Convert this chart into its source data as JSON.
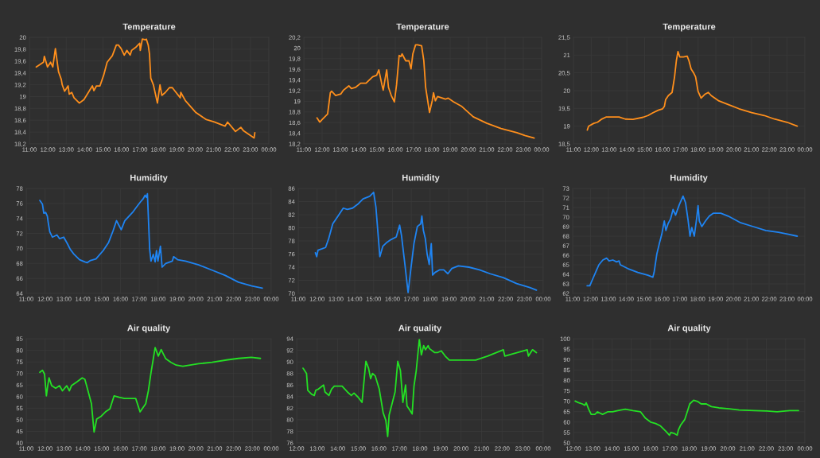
{
  "chart_data": [
    {
      "type": "line",
      "title": "Temperature",
      "line_style": "solid",
      "grid": true,
      "x": [
        11.37,
        11.76,
        11.81,
        11.98,
        12.15,
        12.27,
        12.41,
        12.58,
        12.73,
        12.78,
        12.91,
        13.1,
        13.16,
        13.3,
        13.42,
        13.71,
        13.96,
        14.42,
        14.5,
        14.64,
        14.83,
        15.03,
        15.22,
        15.5,
        15.72,
        15.83,
        15.98,
        16.15,
        16.29,
        16.47,
        16.55,
        16.8,
        16.99,
        17.02,
        17.13,
        17.27,
        17.35,
        17.45,
        17.52,
        17.59,
        17.73,
        17.95,
        18.09,
        18.19,
        18.38,
        18.6,
        18.76,
        18.91,
        19.19,
        19.22,
        19.47,
        20.04,
        20.61,
        21.04,
        21.62,
        21.76,
        22.19,
        22.48,
        22.63,
        23.2,
        23.24
      ],
      "series": [
        {
          "color": "#ff8f1c",
          "values": [
            19.5,
            19.58,
            19.68,
            19.5,
            19.58,
            19.5,
            19.81,
            19.42,
            19.29,
            19.2,
            19.09,
            19.18,
            19.04,
            19.07,
            18.98,
            18.89,
            18.95,
            19.18,
            19.1,
            19.18,
            19.18,
            19.36,
            19.58,
            19.69,
            19.87,
            19.87,
            19.81,
            19.7,
            19.78,
            19.7,
            19.78,
            19.84,
            19.9,
            19.78,
            19.97,
            19.96,
            19.97,
            19.87,
            19.72,
            19.31,
            19.2,
            18.89,
            19.2,
            19.02,
            19.07,
            19.15,
            19.15,
            19.09,
            18.98,
            19.07,
            18.93,
            18.73,
            18.61,
            18.57,
            18.5,
            18.57,
            18.41,
            18.48,
            18.42,
            18.3,
            18.39
          ]
        }
      ],
      "xlim": [
        11,
        24
      ],
      "xticks": [
        {
          "value": 11,
          "label": "11:00"
        },
        {
          "value": 12,
          "label": "12:00"
        },
        {
          "value": 13,
          "label": "13:00"
        },
        {
          "value": 14,
          "label": "14:00"
        },
        {
          "value": 15,
          "label": "15:00"
        },
        {
          "value": 16,
          "label": "16:00"
        },
        {
          "value": 17,
          "label": "17:00"
        },
        {
          "value": 18,
          "label": "18:00"
        },
        {
          "value": 19,
          "label": "19:00"
        },
        {
          "value": 20,
          "label": "20:00"
        },
        {
          "value": 21,
          "label": "21:00"
        },
        {
          "value": 22,
          "label": "22:00"
        },
        {
          "value": 23,
          "label": "23:00"
        },
        {
          "value": 24,
          "label": "00:00"
        }
      ],
      "ylim": [
        18.2,
        20
      ],
      "yticks": [
        {
          "value": 18.2,
          "label": "18,2"
        },
        {
          "value": 18.4,
          "label": "18,4"
        },
        {
          "value": 18.6,
          "label": "18,6"
        },
        {
          "value": 18.8,
          "label": "18,8"
        },
        19,
        {
          "value": 19.2,
          "label": "19,2"
        },
        {
          "value": 19.4,
          "label": "19,4"
        },
        {
          "value": 19.6,
          "label": "19,6"
        },
        {
          "value": 19.8,
          "label": "19,8"
        },
        20
      ]
    },
    {
      "type": "line",
      "title": "Temperature",
      "line_style": "solid",
      "grid": true,
      "x": [
        11.72,
        11.87,
        12.01,
        12.3,
        12.45,
        12.52,
        12.74,
        13.03,
        13.17,
        13.46,
        13.6,
        13.82,
        14.11,
        14.4,
        14.76,
        14.98,
        15.1,
        15.27,
        15.34,
        15.44,
        15.53,
        15.63,
        15.78,
        15.95,
        16.07,
        16.21,
        16.31,
        16.37,
        16.57,
        16.75,
        16.86,
        16.96,
        17.11,
        17.22,
        17.44,
        17.56,
        17.66,
        17.87,
        18.02,
        18.09,
        18.19,
        18.31,
        18.74,
        18.89,
        19.18,
        19.61,
        20.26,
        20.99,
        21.78,
        22.65,
        23.08,
        23.59
      ],
      "series": [
        {
          "color": "#ff8f1c",
          "values": [
            18.69,
            18.61,
            18.66,
            18.76,
            19.16,
            19.19,
            19.11,
            19.14,
            19.21,
            19.29,
            19.24,
            19.26,
            19.34,
            19.34,
            19.46,
            19.49,
            19.59,
            19.31,
            19.21,
            19.41,
            19.59,
            19.26,
            19.11,
            18.99,
            19.31,
            19.86,
            19.84,
            19.89,
            19.76,
            19.76,
            19.61,
            19.89,
            20.06,
            20.06,
            20.04,
            19.76,
            19.26,
            18.79,
            19.01,
            19.16,
            19.01,
            19.09,
            19.04,
            19.06,
            18.99,
            18.91,
            18.71,
            18.59,
            18.49,
            18.41,
            18.36,
            18.31
          ]
        }
      ],
      "xlim": [
        11,
        24
      ],
      "xticks": [
        {
          "value": 11,
          "label": "11:00"
        },
        {
          "value": 12,
          "label": "12:00"
        },
        {
          "value": 13,
          "label": "13:00"
        },
        {
          "value": 14,
          "label": "14:00"
        },
        {
          "value": 15,
          "label": "15:00"
        },
        {
          "value": 16,
          "label": "16:00"
        },
        {
          "value": 17,
          "label": "17:00"
        },
        {
          "value": 18,
          "label": "18:00"
        },
        {
          "value": 19,
          "label": "19:00"
        },
        {
          "value": 20,
          "label": "20:00"
        },
        {
          "value": 21,
          "label": "21:00"
        },
        {
          "value": 22,
          "label": "22:00"
        },
        {
          "value": 23,
          "label": "23:00"
        },
        {
          "value": 24,
          "label": "00:00"
        }
      ],
      "ylim": [
        18.2,
        20.2
      ],
      "yticks": [
        {
          "value": 18.2,
          "label": "18,2"
        },
        {
          "value": 18.4,
          "label": "18,4"
        },
        {
          "value": 18.6,
          "label": "18,6"
        },
        {
          "value": 18.8,
          "label": "18,8"
        },
        19,
        {
          "value": 19.2,
          "label": "19,2"
        },
        {
          "value": 19.4,
          "label": "19,4"
        },
        {
          "value": 19.6,
          "label": "19,6"
        },
        {
          "value": 19.8,
          "label": "19,8"
        },
        20,
        {
          "value": 20.2,
          "label": "20,2"
        }
      ]
    },
    {
      "type": "line",
      "title": "Temperature",
      "line_style": "solid",
      "grid": true,
      "x": [
        11.78,
        11.85,
        12.14,
        12.35,
        12.56,
        12.85,
        13.2,
        13.56,
        13.91,
        14.34,
        14.91,
        15.19,
        15.47,
        15.76,
        16.01,
        16.11,
        16.18,
        16.33,
        16.54,
        16.68,
        16.78,
        16.87,
        16.97,
        17.18,
        17.39,
        17.49,
        17.61,
        17.75,
        17.86,
        18.0,
        18.17,
        18.39,
        18.57,
        18.74,
        19.17,
        19.74,
        20.3,
        21.01,
        21.72,
        22.29,
        23.0,
        23.57
      ],
      "series": [
        {
          "color": "#ff8f1c",
          "values": [
            18.89,
            19.0,
            19.08,
            19.11,
            19.19,
            19.26,
            19.26,
            19.26,
            19.2,
            19.19,
            19.25,
            19.3,
            19.38,
            19.45,
            19.49,
            19.56,
            19.75,
            19.86,
            19.95,
            20.39,
            20.84,
            21.1,
            20.95,
            20.95,
            20.97,
            20.84,
            20.61,
            20.5,
            20.39,
            19.98,
            19.79,
            19.9,
            19.95,
            19.86,
            19.71,
            19.6,
            19.49,
            19.38,
            19.3,
            19.2,
            19.11,
            19.0
          ]
        }
      ],
      "xlim": [
        11,
        24
      ],
      "xticks": [
        {
          "value": 11,
          "label": "11:00"
        },
        {
          "value": 12,
          "label": "12:00"
        },
        {
          "value": 13,
          "label": "13:00"
        },
        {
          "value": 14,
          "label": "14:00"
        },
        {
          "value": 15,
          "label": "15:00"
        },
        {
          "value": 16,
          "label": "16:00"
        },
        {
          "value": 17,
          "label": "17:00"
        },
        {
          "value": 18,
          "label": "18:00"
        },
        {
          "value": 19,
          "label": "19:00"
        },
        {
          "value": 20,
          "label": "20:00"
        },
        {
          "value": 21,
          "label": "21:00"
        },
        {
          "value": 22,
          "label": "22:00"
        },
        {
          "value": 23,
          "label": "23:00"
        },
        {
          "value": 24,
          "label": "00:00"
        }
      ],
      "ylim": [
        18.5,
        21.5
      ],
      "yticks": [
        {
          "value": 18.5,
          "label": "18,5"
        },
        19,
        {
          "value": 19.5,
          "label": "19,5"
        },
        20,
        {
          "value": 20.5,
          "label": "20,5"
        },
        21,
        {
          "value": 21.5,
          "label": "21,5"
        }
      ]
    },
    {
      "type": "line",
      "title": "Humidity",
      "line_style": "solid",
      "grid": true,
      "x": [
        11.72,
        11.86,
        11.93,
        12.03,
        12.12,
        12.17,
        12.25,
        12.39,
        12.63,
        12.77,
        12.99,
        13.19,
        13.33,
        13.54,
        13.83,
        14.11,
        14.24,
        14.41,
        14.7,
        15.08,
        15.37,
        15.6,
        15.79,
        16.04,
        16.23,
        16.64,
        16.85,
        17.06,
        17.2,
        17.31,
        17.38,
        17.43,
        17.55,
        17.62,
        17.74,
        17.84,
        17.91,
        17.99,
        18.12,
        18.21,
        18.4,
        18.75,
        18.82,
        19.03,
        19.45,
        20.15,
        20.86,
        21.56,
        22.26,
        22.97,
        23.53
      ],
      "series": [
        {
          "color": "#1f84f2",
          "values": [
            76.4,
            75.9,
            74.7,
            74.8,
            74.3,
            73.4,
            72.2,
            71.5,
            71.8,
            71.3,
            71.5,
            70.6,
            69.9,
            69.2,
            68.5,
            68.2,
            68.1,
            68.4,
            68.6,
            69.7,
            70.8,
            72.3,
            73.7,
            72.5,
            73.7,
            74.8,
            75.5,
            76.2,
            76.6,
            77.1,
            76.8,
            77.3,
            69.9,
            68.3,
            69.2,
            68.2,
            69.7,
            68.3,
            70.3,
            67.5,
            68.0,
            68.3,
            68.9,
            68.5,
            68.3,
            67.8,
            67.1,
            66.4,
            65.5,
            65.0,
            64.7
          ]
        }
      ],
      "xlim": [
        11,
        24
      ],
      "xticks": [
        {
          "value": 11,
          "label": "11:00"
        },
        {
          "value": 12,
          "label": "12:00"
        },
        {
          "value": 13,
          "label": "13:00"
        },
        {
          "value": 14,
          "label": "14:00"
        },
        {
          "value": 15,
          "label": "15:00"
        },
        {
          "value": 16,
          "label": "16:00"
        },
        {
          "value": 17,
          "label": "17:00"
        },
        {
          "value": 18,
          "label": "18:00"
        },
        {
          "value": 19,
          "label": "19:00"
        },
        {
          "value": 20,
          "label": "20:00"
        },
        {
          "value": 21,
          "label": "21:00"
        },
        {
          "value": 22,
          "label": "22:00"
        },
        {
          "value": 23,
          "label": "23:00"
        },
        {
          "value": 24,
          "label": "00:00"
        }
      ],
      "ylim": [
        64,
        78
      ],
      "yticks": [
        64,
        66,
        68,
        70,
        72,
        74,
        76,
        78
      ]
    },
    {
      "type": "line",
      "title": "Humidity",
      "line_style": "solid",
      "grid": true,
      "x": [
        11.91,
        11.98,
        12.05,
        12.26,
        12.45,
        12.62,
        12.83,
        13.11,
        13.39,
        13.6,
        13.88,
        14.16,
        14.44,
        14.79,
        15.0,
        15.12,
        15.33,
        15.49,
        15.71,
        15.92,
        16.2,
        16.38,
        16.48,
        16.66,
        16.83,
        16.97,
        17.14,
        17.32,
        17.5,
        17.56,
        17.64,
        17.74,
        17.84,
        17.95,
        18.06,
        18.13,
        18.26,
        18.51,
        18.72,
        18.94,
        19.15,
        19.5,
        20.06,
        20.62,
        21.18,
        21.88,
        22.59,
        23.29,
        23.64
      ],
      "series": [
        {
          "color": "#1f84f2",
          "values": [
            76.2,
            75.6,
            76.6,
            76.8,
            77.0,
            78.4,
            80.6,
            81.8,
            83.0,
            82.8,
            83.0,
            83.6,
            84.4,
            84.8,
            85.4,
            83.2,
            75.6,
            77.2,
            77.8,
            78.2,
            78.6,
            80.4,
            78.8,
            74.4,
            70.1,
            73.6,
            77.6,
            80.2,
            80.6,
            81.8,
            79.6,
            78.4,
            76.0,
            74.4,
            77.6,
            72.8,
            73.2,
            73.6,
            73.6,
            73.0,
            73.8,
            74.2,
            74.0,
            73.6,
            73.0,
            72.4,
            71.5,
            70.9,
            70.5
          ]
        }
      ],
      "xlim": [
        11,
        24
      ],
      "xticks": [
        {
          "value": 11,
          "label": "11:00"
        },
        {
          "value": 12,
          "label": "12:00"
        },
        {
          "value": 13,
          "label": "13:00"
        },
        {
          "value": 14,
          "label": "14:00"
        },
        {
          "value": 15,
          "label": "15:00"
        },
        {
          "value": 16,
          "label": "16:00"
        },
        {
          "value": 17,
          "label": "17:00"
        },
        {
          "value": 18,
          "label": "18:00"
        },
        {
          "value": 19,
          "label": "19:00"
        },
        {
          "value": 20,
          "label": "20:00"
        },
        {
          "value": 21,
          "label": "21:00"
        },
        {
          "value": 22,
          "label": "22:00"
        },
        {
          "value": 23,
          "label": "23:00"
        },
        {
          "value": 24,
          "label": "00:00"
        }
      ],
      "ylim": [
        70,
        86
      ],
      "yticks": [
        70,
        72,
        74,
        76,
        78,
        80,
        82,
        84,
        86
      ]
    },
    {
      "type": "line",
      "title": "Humidity",
      "line_style": "solid",
      "grid": true,
      "x": [
        11.81,
        11.96,
        12.12,
        12.33,
        12.47,
        12.69,
        12.9,
        13.04,
        13.25,
        13.46,
        13.6,
        13.67,
        14.09,
        14.65,
        15.21,
        15.49,
        15.56,
        15.71,
        15.85,
        15.99,
        16.13,
        16.22,
        16.34,
        16.48,
        16.62,
        16.76,
        16.97,
        17.18,
        17.32,
        17.46,
        17.57,
        17.67,
        17.81,
        17.95,
        18.02,
        18.09,
        18.23,
        18.44,
        18.65,
        18.87,
        19.29,
        19.71,
        20.41,
        21.11,
        21.81,
        22.52,
        23.08,
        23.57
      ],
      "series": [
        {
          "color": "#1f84f2",
          "values": [
            62.8,
            62.8,
            63.5,
            64.4,
            65.0,
            65.5,
            65.7,
            65.4,
            65.5,
            65.3,
            65.4,
            65.0,
            64.6,
            64.2,
            63.9,
            63.7,
            64.2,
            66.1,
            67.2,
            68.2,
            69.6,
            68.6,
            69.3,
            69.8,
            70.8,
            70.2,
            71.3,
            72.2,
            71.5,
            69.7,
            68.0,
            68.9,
            68.0,
            70.0,
            71.2,
            69.6,
            69.0,
            69.6,
            70.1,
            70.4,
            70.4,
            70.1,
            69.4,
            69.0,
            68.6,
            68.4,
            68.2,
            68.0
          ]
        }
      ],
      "xlim": [
        11,
        24
      ],
      "xticks": [
        {
          "value": 11,
          "label": "11:00"
        },
        {
          "value": 12,
          "label": "12:00"
        },
        {
          "value": 13,
          "label": "13:00"
        },
        {
          "value": 14,
          "label": "14:00"
        },
        {
          "value": 15,
          "label": "15:00"
        },
        {
          "value": 16,
          "label": "16:00"
        },
        {
          "value": 17,
          "label": "17:00"
        },
        {
          "value": 18,
          "label": "18:00"
        },
        {
          "value": 19,
          "label": "19:00"
        },
        {
          "value": 20,
          "label": "20:00"
        },
        {
          "value": 21,
          "label": "21:00"
        },
        {
          "value": 22,
          "label": "22:00"
        },
        {
          "value": 23,
          "label": "23:00"
        },
        {
          "value": 24,
          "label": "00:00"
        }
      ],
      "ylim": [
        62,
        73
      ],
      "yticks": [
        62,
        63,
        64,
        65,
        66,
        67,
        68,
        69,
        70,
        71,
        72,
        73
      ]
    },
    {
      "type": "line",
      "title": "Air quality",
      "line_style": "solid",
      "grid": true,
      "x": [
        11.72,
        11.86,
        11.97,
        12.07,
        12.14,
        12.21,
        12.35,
        12.56,
        12.77,
        12.92,
        13.15,
        13.29,
        13.4,
        13.69,
        13.97,
        14.11,
        14.24,
        14.46,
        14.6,
        14.74,
        14.96,
        15.23,
        15.44,
        15.66,
        15.93,
        16.21,
        16.5,
        16.81,
        17.04,
        17.2,
        17.34,
        17.48,
        17.62,
        17.84,
        18.01,
        18.16,
        18.4,
        18.68,
        18.96,
        19.31,
        20.15,
        20.86,
        21.69,
        22.26,
        22.94,
        23.43
      ],
      "series": [
        {
          "color": "#24e024",
          "values": [
            70.5,
            71.4,
            69.7,
            60.3,
            64.7,
            68.1,
            64.7,
            63.6,
            64.7,
            62.5,
            64.7,
            62.5,
            64.7,
            66.4,
            68.1,
            67.5,
            63.6,
            56.9,
            44.7,
            50.3,
            51.4,
            53.6,
            54.7,
            60.3,
            59.7,
            59.2,
            59.2,
            59.2,
            53.4,
            55.3,
            56.9,
            62.5,
            70.3,
            81.2,
            77.5,
            80.3,
            76.4,
            74.8,
            73.6,
            73.1,
            74.2,
            74.8,
            75.9,
            76.5,
            77.0,
            76.5
          ]
        }
      ],
      "xlim": [
        11,
        24
      ],
      "xticks": [
        {
          "value": 11,
          "label": "11:00"
        },
        {
          "value": 12,
          "label": "12:00"
        },
        {
          "value": 13,
          "label": "13:00"
        },
        {
          "value": 14,
          "label": "14:00"
        },
        {
          "value": 15,
          "label": "15:00"
        },
        {
          "value": 16,
          "label": "16:00"
        },
        {
          "value": 17,
          "label": "17:00"
        },
        {
          "value": 18,
          "label": "18:00"
        },
        {
          "value": 19,
          "label": "19:00"
        },
        {
          "value": 20,
          "label": "20:00"
        },
        {
          "value": 21,
          "label": "21:00"
        },
        {
          "value": 22,
          "label": "22:00"
        },
        {
          "value": 23,
          "label": "23:00"
        },
        {
          "value": 24,
          "label": "00:00"
        }
      ],
      "ylim": [
        40,
        85
      ],
      "yticks": [
        40,
        45,
        50,
        55,
        60,
        65,
        70,
        75,
        80,
        85
      ]
    },
    {
      "type": "line",
      "title": "Air quality",
      "line_style": "solid",
      "grid": true,
      "x": [
        12.31,
        12.48,
        12.54,
        12.73,
        12.86,
        12.93,
        13.06,
        13.31,
        13.38,
        13.57,
        13.7,
        13.83,
        14.21,
        14.47,
        14.66,
        14.79,
        14.99,
        15.18,
        15.37,
        15.5,
        15.6,
        15.69,
        15.82,
        16.02,
        16.21,
        16.34,
        16.43,
        16.5,
        16.66,
        16.79,
        16.92,
        17.05,
        17.17,
        17.3,
        17.37,
        17.5,
        17.62,
        17.71,
        17.82,
        17.97,
        18.07,
        18.18,
        18.27,
        18.4,
        18.46,
        18.72,
        18.85,
        19.04,
        19.23,
        19.43,
        20.13,
        20.71,
        21.29,
        22.06,
        22.13,
        23.22,
        23.28,
        23.48,
        23.67
      ],
      "series": [
        {
          "color": "#24e024",
          "values": [
            88.9,
            88.0,
            85.1,
            84.4,
            84.2,
            85.1,
            85.3,
            86.0,
            84.8,
            84.2,
            85.3,
            85.8,
            85.8,
            84.8,
            84.2,
            84.6,
            83.9,
            83.0,
            90.1,
            88.9,
            87.1,
            88.0,
            87.6,
            85.3,
            81.2,
            79.9,
            77.1,
            80.8,
            83.0,
            84.8,
            90.1,
            88.5,
            83.0,
            86.0,
            82.4,
            81.7,
            81.0,
            85.8,
            88.5,
            93.9,
            91.2,
            92.8,
            92.1,
            92.8,
            92.3,
            91.6,
            91.6,
            91.9,
            91.0,
            90.3,
            90.3,
            90.3,
            91.0,
            92.1,
            91.0,
            92.1,
            91.0,
            92.1,
            91.6
          ]
        }
      ],
      "xlim": [
        12,
        24
      ],
      "xticks": [
        {
          "value": 12,
          "label": "12:00"
        },
        {
          "value": 13,
          "label": "13:00"
        },
        {
          "value": 14,
          "label": "14:00"
        },
        {
          "value": 15,
          "label": "15:00"
        },
        {
          "value": 16,
          "label": "16:00"
        },
        {
          "value": 17,
          "label": "17:00"
        },
        {
          "value": 18,
          "label": "18:00"
        },
        {
          "value": 19,
          "label": "19:00"
        },
        {
          "value": 20,
          "label": "20:00"
        },
        {
          "value": 21,
          "label": "21:00"
        },
        {
          "value": 22,
          "label": "22:00"
        },
        {
          "value": 23,
          "label": "23:00"
        },
        {
          "value": 24,
          "label": "00:00"
        }
      ],
      "ylim": [
        76,
        94
      ],
      "yticks": [
        76,
        78,
        80,
        82,
        84,
        86,
        88,
        90,
        92,
        94
      ]
    },
    {
      "type": "line",
      "title": "Air quality",
      "line_style": "solid",
      "grid": true,
      "x": [
        12.09,
        12.26,
        12.46,
        12.59,
        12.66,
        12.79,
        12.92,
        13.11,
        13.25,
        13.51,
        13.77,
        14.03,
        14.3,
        14.69,
        15.08,
        15.48,
        15.74,
        16.0,
        16.26,
        16.52,
        16.79,
        16.98,
        17.05,
        17.25,
        17.38,
        17.44,
        17.57,
        17.77,
        17.9,
        18.03,
        18.23,
        18.43,
        18.62,
        18.89,
        19.15,
        19.54,
        20.07,
        20.59,
        21.38,
        22.03,
        22.56,
        23.21,
        23.67
      ],
      "series": [
        {
          "color": "#24e024",
          "values": [
            70.1,
            69.3,
            68.7,
            68.0,
            69.3,
            66.2,
            63.7,
            63.7,
            64.9,
            63.7,
            64.9,
            64.9,
            65.5,
            66.2,
            65.5,
            64.9,
            61.8,
            60.0,
            59.3,
            58.1,
            55.6,
            53.7,
            55.0,
            54.4,
            53.7,
            56.2,
            58.7,
            61.2,
            64.9,
            68.7,
            70.5,
            69.9,
            68.7,
            68.7,
            67.4,
            66.8,
            66.4,
            65.8,
            65.5,
            65.3,
            64.9,
            65.5,
            65.5
          ]
        }
      ],
      "xlim": [
        12,
        24
      ],
      "xticks": [
        {
          "value": 12,
          "label": "12:00"
        },
        {
          "value": 13,
          "label": "13:00"
        },
        {
          "value": 14,
          "label": "14:00"
        },
        {
          "value": 15,
          "label": "15:00"
        },
        {
          "value": 16,
          "label": "16:00"
        },
        {
          "value": 17,
          "label": "17:00"
        },
        {
          "value": 18,
          "label": "18:00"
        },
        {
          "value": 19,
          "label": "19:00"
        },
        {
          "value": 20,
          "label": "20:00"
        },
        {
          "value": 21,
          "label": "21:00"
        },
        {
          "value": 22,
          "label": "22:00"
        },
        {
          "value": 23,
          "label": "23:00"
        },
        {
          "value": 24,
          "label": "00:00"
        }
      ],
      "ylim": [
        50,
        100
      ],
      "yticks": [
        50,
        55,
        60,
        65,
        70,
        75,
        80,
        85,
        90,
        95,
        100
      ]
    }
  ]
}
